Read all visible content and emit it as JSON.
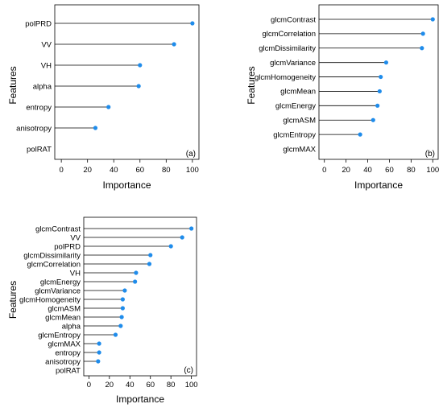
{
  "chart_data": [
    {
      "id": "a",
      "type": "scatter",
      "style": "lollipop",
      "panel_label": "(a)",
      "xlabel": "Importance",
      "ylabel": "Features",
      "xlim": [
        -5,
        105
      ],
      "xticks": [
        0,
        20,
        40,
        60,
        80,
        100
      ],
      "grid": false,
      "point_color": "#1f8ceb",
      "categories": [
        "polPRD",
        "VV",
        "VH",
        "alpha",
        "entropy",
        "anisotropy",
        "polRAT"
      ],
      "values": [
        100,
        86,
        60,
        59,
        36,
        26,
        0
      ]
    },
    {
      "id": "b",
      "type": "scatter",
      "style": "lollipop",
      "panel_label": "(b)",
      "xlabel": "Importance",
      "ylabel": "Features",
      "xlim": [
        -5,
        105
      ],
      "xticks": [
        0,
        20,
        40,
        60,
        80,
        100
      ],
      "grid": false,
      "point_color": "#1f8ceb",
      "categories": [
        "glcmContrast",
        "glcmCorrelation",
        "glcmDissimilarity",
        "glcmVariance",
        "glcmHomogeneity",
        "glcmMean",
        "glcmEnergy",
        "glcmASM",
        "glcmEntropy",
        "glcmMAX"
      ],
      "values": [
        100,
        91,
        90,
        57,
        52,
        51,
        49,
        45,
        33,
        0
      ]
    },
    {
      "id": "c",
      "type": "scatter",
      "style": "lollipop",
      "panel_label": "(c)",
      "xlabel": "Importance",
      "ylabel": "Features",
      "xlim": [
        -5,
        105
      ],
      "xticks": [
        0,
        20,
        40,
        60,
        80,
        100
      ],
      "grid": false,
      "point_color": "#1f8ceb",
      "categories": [
        "glcmContrast",
        "VV",
        "polPRD",
        "glcmDissimilarity",
        "glcmCorrelation",
        "VH",
        "glcmEnergy",
        "glcmVariance",
        "glcmHomogeneity",
        "glcmASM",
        "glcmMean",
        "alpha",
        "glcmEntropy",
        "glcmMAX",
        "entropy",
        "anisotropy",
        "polRAT"
      ],
      "values": [
        100,
        91,
        80,
        60,
        59,
        46,
        45,
        35,
        33,
        33,
        32,
        31,
        26,
        10,
        10,
        9,
        0
      ]
    }
  ]
}
